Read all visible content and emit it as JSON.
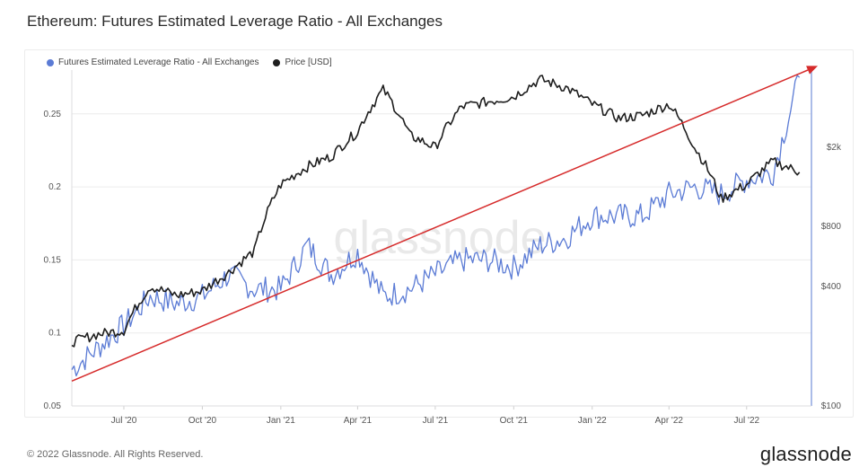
{
  "title": "Ethereum: Futures Estimated Leverage Ratio - All Exchanges",
  "footer": "© 2022 Glassnode. All Rights Reserved.",
  "brand": "glassnode",
  "watermark": "glassnode",
  "colors": {
    "leverage": "#5b7bd5",
    "price": "#1e1e1e",
    "trend": "#d62b2b",
    "grid": "#ececec"
  },
  "legend": [
    {
      "label": "Futures Estimated Leverage Ratio - All Exchanges",
      "color": "#5b7bd5"
    },
    {
      "label": "Price [USD]",
      "color": "#1e1e1e"
    }
  ],
  "chart_data": {
    "type": "line",
    "title": "Ethereum: Futures Estimated Leverage Ratio - All Exchanges",
    "x_ticks": [
      "Jul '20",
      "Oct '20",
      "Jan '21",
      "Apr '21",
      "Jul '21",
      "Oct '21",
      "Jan '22",
      "Apr '22",
      "Jul '22"
    ],
    "y_left": {
      "ticks": [
        "0.05",
        "0.1",
        "0.15",
        "0.2",
        "0.25"
      ],
      "range": [
        0.05,
        0.28
      ]
    },
    "y_right": {
      "scale": "log",
      "ticks": [
        "$100",
        "$400",
        "$800",
        "$2k"
      ],
      "range": [
        100,
        4900
      ]
    },
    "grid": true,
    "legend_position": "top-left",
    "x": [
      "2020-05-01",
      "2020-06-01",
      "2020-07-01",
      "2020-08-01",
      "2020-09-01",
      "2020-10-01",
      "2020-11-01",
      "2020-12-01",
      "2021-01-01",
      "2021-02-01",
      "2021-03-01",
      "2021-04-01",
      "2021-05-01",
      "2021-06-01",
      "2021-07-01",
      "2021-08-01",
      "2021-09-01",
      "2021-10-01",
      "2021-11-01",
      "2021-12-01",
      "2022-01-01",
      "2022-02-01",
      "2022-03-01",
      "2022-04-01",
      "2022-05-01",
      "2022-06-01",
      "2022-07-01",
      "2022-08-01",
      "2022-09-01"
    ],
    "series": [
      {
        "name": "Futures Estimated Leverage Ratio - All Exchanges",
        "axis": "left",
        "values": [
          0.075,
          0.09,
          0.105,
          0.125,
          0.12,
          0.125,
          0.14,
          0.13,
          0.13,
          0.16,
          0.14,
          0.155,
          0.125,
          0.13,
          0.14,
          0.15,
          0.15,
          0.145,
          0.16,
          0.165,
          0.18,
          0.18,
          0.18,
          0.195,
          0.2,
          0.195,
          0.205,
          0.21,
          0.275
        ]
      },
      {
        "name": "Price [USD]",
        "axis": "right",
        "values": [
          210,
          230,
          240,
          400,
          360,
          380,
          470,
          600,
          1300,
          1600,
          1800,
          2400,
          3900,
          2300,
          2000,
          3200,
          3400,
          3600,
          4400,
          4000,
          3300,
          2800,
          2900,
          3300,
          2000,
          1100,
          1300,
          1700,
          1500
        ]
      }
    ],
    "annotations": [
      {
        "type": "arrow",
        "color": "#d62b2b",
        "from": [
          "2020-05-01",
          0.067
        ],
        "to": [
          "2022-09-15",
          0.28
        ]
      }
    ]
  }
}
